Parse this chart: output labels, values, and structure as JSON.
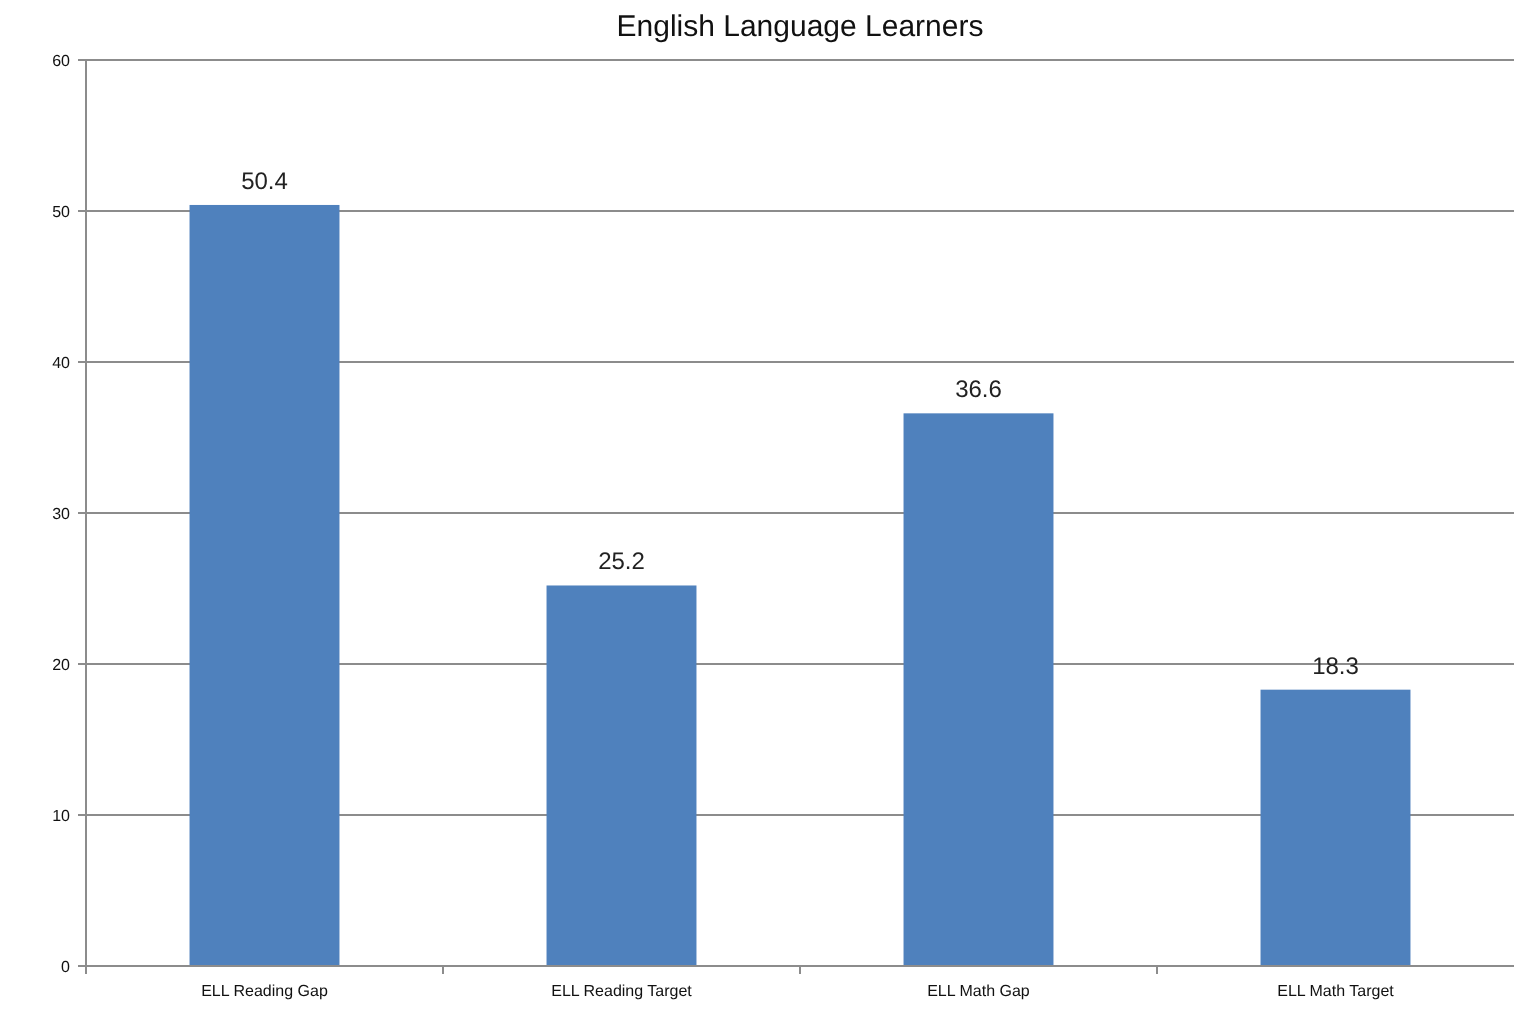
{
  "chart_data": {
    "type": "bar",
    "title": "English Language Learners",
    "categories": [
      "ELL Reading Gap",
      "ELL Reading Target",
      "ELL Math Gap",
      "ELL Math Target"
    ],
    "values": [
      50.4,
      25.2,
      36.6,
      18.3
    ],
    "colors": [
      "#4f81bd",
      "#4f81bd",
      "#4f81bd",
      "#4f81bd"
    ],
    "ylim": [
      0,
      60
    ],
    "yticks": [
      0,
      10,
      20,
      30,
      40,
      50,
      60
    ],
    "grid": "y",
    "data_labels": true
  }
}
